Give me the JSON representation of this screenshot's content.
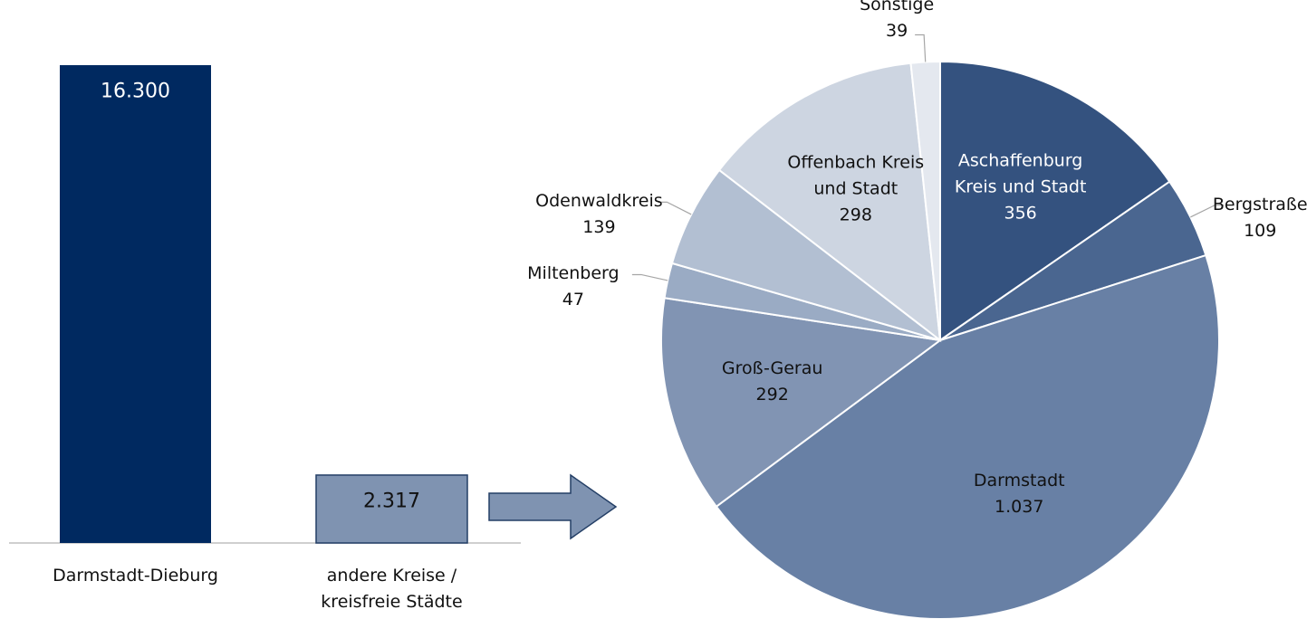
{
  "chart_data": [
    {
      "type": "bar",
      "categories": [
        "Darmstadt-Dieburg",
        "andere Kreise / kreisfreie Städte"
      ],
      "values": [
        16300,
        2317
      ],
      "value_labels": [
        "16.300",
        "2.317"
      ],
      "colors": [
        "#002960",
        "#7f93b1"
      ]
    },
    {
      "type": "pie",
      "categories": [
        "Aschaffenburg Kreis und Stadt",
        "Bergstraße",
        "Darmstadt",
        "Groß-Gerau",
        "Miltenberg",
        "Odenwaldkreis",
        "Offenbach Kreis und Stadt",
        "Sonstige"
      ],
      "values": [
        356,
        109,
        1037,
        292,
        47,
        139,
        298,
        39
      ],
      "value_labels": [
        "356",
        "109",
        "1.037",
        "292",
        "47",
        "139",
        "298",
        "39"
      ],
      "colors": [
        "#34527f",
        "#4a6690",
        "#6880a5",
        "#8194b3",
        "#9aabc4",
        "#b2bfd2",
        "#cdd5e1",
        "#e4e8ef"
      ]
    }
  ]
}
